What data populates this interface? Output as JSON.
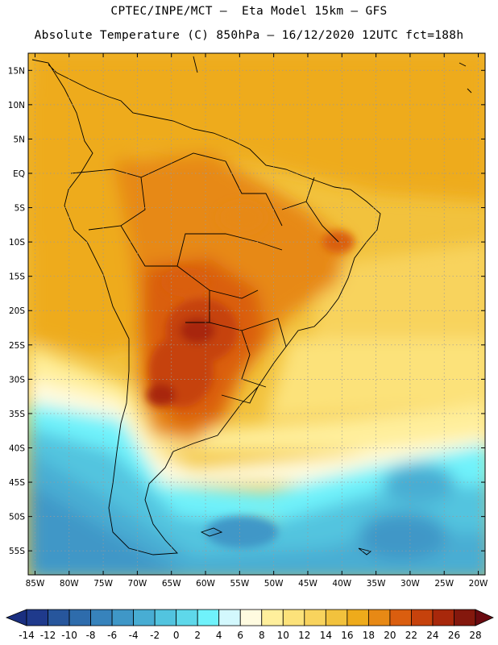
{
  "header": {
    "line1": "CPTEC/INPE/MCT —  Eta Model 15km — GFS",
    "line2": "Absolute Temperature (C) 850hPa — 16/12/2020 12UTC fct=188h"
  },
  "map": {
    "lon_range": [
      -86,
      -19
    ],
    "lat_range": [
      -58.5,
      17.5
    ],
    "lat_ticks": [
      {
        "value": 15,
        "label": "15N"
      },
      {
        "value": 10,
        "label": "10N"
      },
      {
        "value": 5,
        "label": "5N"
      },
      {
        "value": 0,
        "label": "EQ"
      },
      {
        "value": -5,
        "label": "5S"
      },
      {
        "value": -10,
        "label": "10S"
      },
      {
        "value": -15,
        "label": "15S"
      },
      {
        "value": -20,
        "label": "20S"
      },
      {
        "value": -25,
        "label": "25S"
      },
      {
        "value": -30,
        "label": "30S"
      },
      {
        "value": -35,
        "label": "35S"
      },
      {
        "value": -40,
        "label": "40S"
      },
      {
        "value": -45,
        "label": "45S"
      },
      {
        "value": -50,
        "label": "50S"
      },
      {
        "value": -55,
        "label": "55S"
      }
    ],
    "lon_ticks": [
      {
        "value": -85,
        "label": "85W"
      },
      {
        "value": -80,
        "label": "80W"
      },
      {
        "value": -75,
        "label": "75W"
      },
      {
        "value": -70,
        "label": "70W"
      },
      {
        "value": -65,
        "label": "65W"
      },
      {
        "value": -60,
        "label": "60W"
      },
      {
        "value": -55,
        "label": "55W"
      },
      {
        "value": -50,
        "label": "50W"
      },
      {
        "value": -45,
        "label": "45W"
      },
      {
        "value": -40,
        "label": "40W"
      },
      {
        "value": -35,
        "label": "35W"
      },
      {
        "value": -30,
        "label": "30W"
      },
      {
        "value": -25,
        "label": "25W"
      },
      {
        "value": -20,
        "label": "20W"
      }
    ]
  },
  "colorbar": {
    "labels": [
      "-14",
      "-12",
      "-10",
      "-8",
      "-6",
      "-4",
      "-2",
      "0",
      "2",
      "4",
      "6",
      "8",
      "10",
      "12",
      "14",
      "16",
      "18",
      "20",
      "22",
      "24",
      "26",
      "28"
    ],
    "colors": [
      "#1f3a8c",
      "#27569c",
      "#2e6cac",
      "#3783bc",
      "#3f97c7",
      "#48add3",
      "#52c4df",
      "#5ed8ea",
      "#6ff2fb",
      "#d3f8fd",
      "#fffbe0",
      "#ffef9c",
      "#fce27a",
      "#f8d35d",
      "#f2c23d",
      "#eeab1b",
      "#e78915",
      "#da5e0f",
      "#c6420c",
      "#a8280b",
      "#84180d"
    ],
    "under_color": "#1a2f80",
    "over_color": "#6a0a10"
  }
}
